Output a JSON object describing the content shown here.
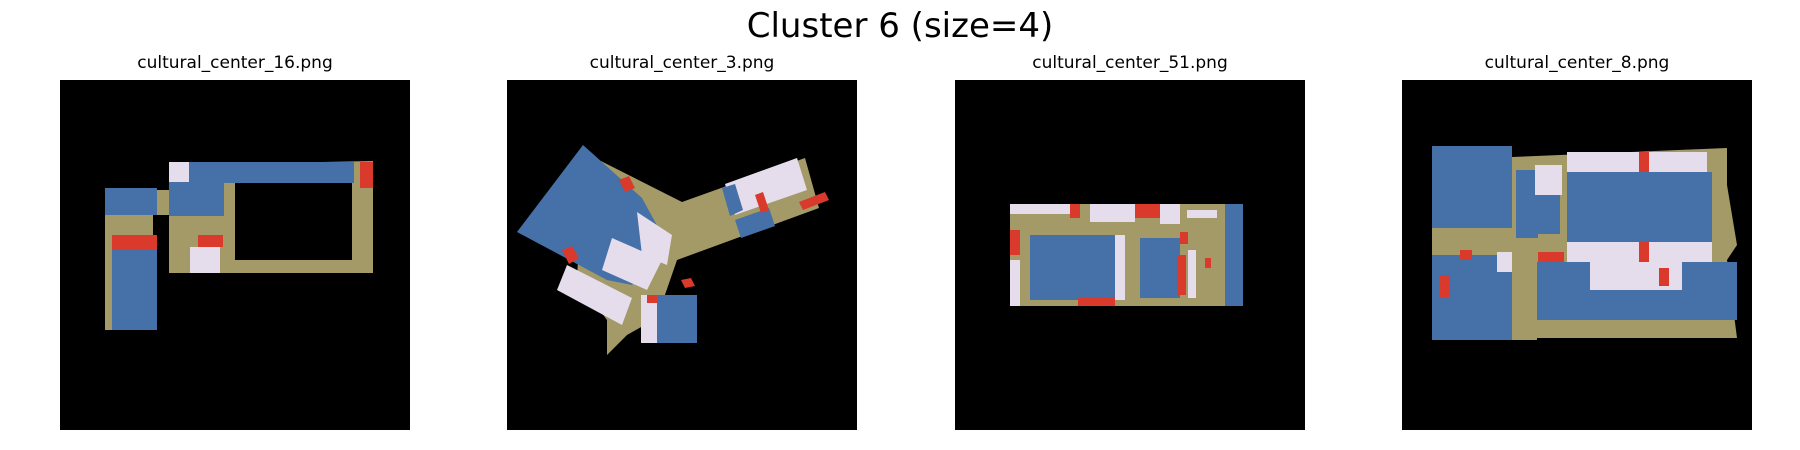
{
  "figure": {
    "title": "Cluster 6 (size=4)",
    "colors": {
      "background": "#000000",
      "corridor": "#a39a67",
      "room_blue": "#4570a8",
      "room_light": "#e5dcec",
      "accent_red": "#d93a2b"
    }
  },
  "panels": [
    {
      "title": "cultural_center_16.png"
    },
    {
      "title": "cultural_center_3.png"
    },
    {
      "title": "cultural_center_51.png"
    },
    {
      "title": "cultural_center_8.png"
    }
  ]
}
